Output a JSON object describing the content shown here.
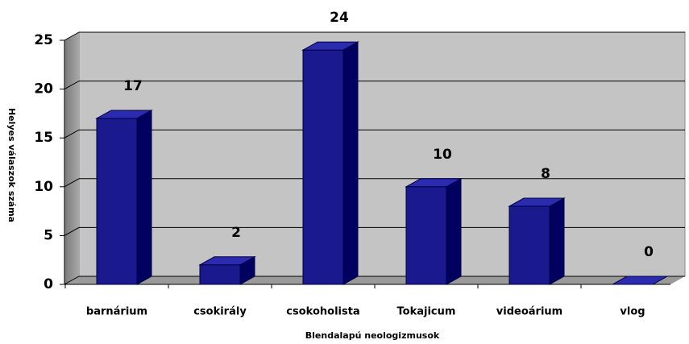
{
  "chart_data": {
    "type": "bar",
    "categories": [
      "barnárium",
      "csokirály",
      "csokoholista",
      "Tokajicum",
      "videoárium",
      "vlog"
    ],
    "values": [
      17,
      2,
      24,
      10,
      8,
      0
    ],
    "color": "#1a1a8e",
    "ylim": [
      0,
      25
    ],
    "yticks": [
      0,
      5,
      10,
      15,
      20,
      25
    ],
    "grid": true,
    "x_label": "Blendalapú neologizmusok",
    "y_label": "Helyes válaszok száma"
  }
}
